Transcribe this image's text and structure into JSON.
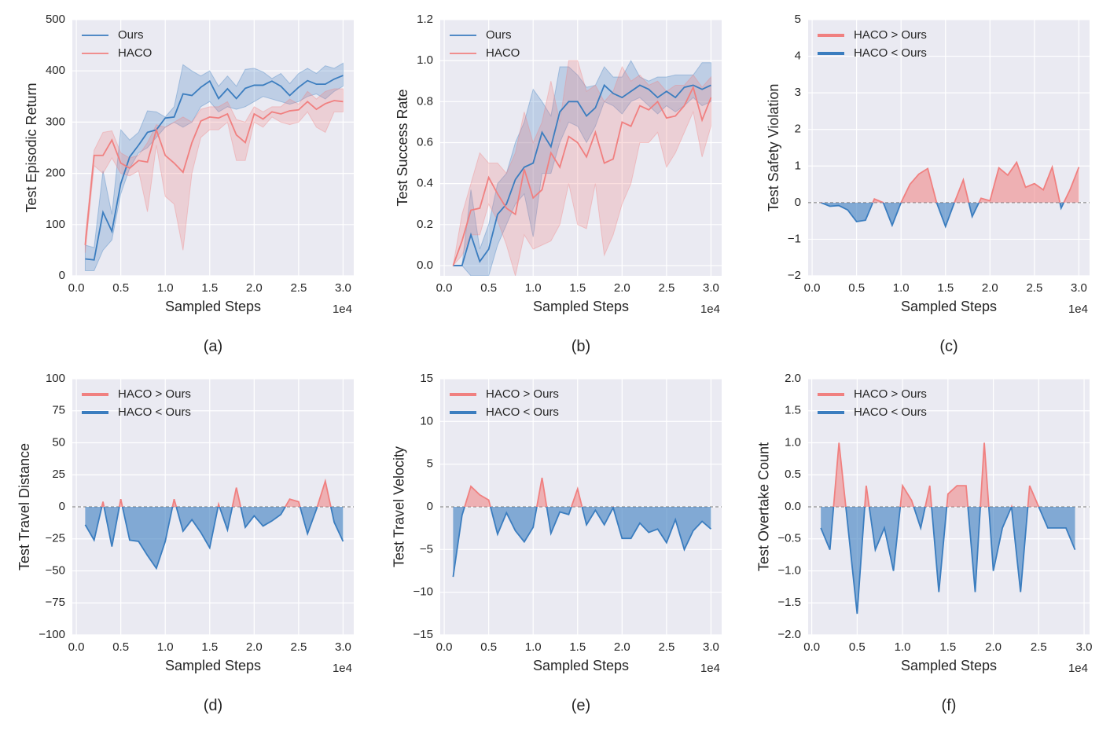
{
  "chart_data": [
    {
      "type": "line",
      "caption": "(a)",
      "xlabel": "Sampled Steps",
      "ylabel": "Test Episodic Return",
      "x_offset": "1e4",
      "legend_position": "upper left",
      "grid": true,
      "x": [
        0.1,
        0.2,
        0.3,
        0.4,
        0.5,
        0.6,
        0.7,
        0.8,
        0.9,
        1.0,
        1.1,
        1.2,
        1.3,
        1.4,
        1.5,
        1.6,
        1.7,
        1.8,
        1.9,
        2.0,
        2.1,
        2.2,
        2.3,
        2.4,
        2.5,
        2.6,
        2.7,
        2.8,
        2.9,
        3.0
      ],
      "xlim": [
        -0.045,
        3.12
      ],
      "xticks": [
        {
          "value": 0,
          "label": "0.0"
        },
        0.5,
        {
          "value": 1,
          "label": "1.0"
        },
        1.5,
        {
          "value": 2,
          "label": "2.0"
        },
        2.5,
        {
          "value": 3,
          "label": "3.0"
        }
      ],
      "ylim": [
        0,
        500
      ],
      "yticks": [
        0,
        100,
        200,
        300,
        400,
        500
      ],
      "series": [
        {
          "name": "Ours",
          "color": "#3b7dbf",
          "values": [
            33,
            31,
            124,
            87,
            180,
            232,
            255,
            280,
            285,
            308,
            310,
            355,
            352,
            368,
            380,
            346,
            365,
            346,
            366,
            372,
            372,
            380,
            370,
            352,
            368,
            381,
            374,
            374,
            384,
            391
          ],
          "lower": [
            10,
            10,
            50,
            70,
            160,
            210,
            240,
            250,
            270,
            290,
            300,
            290,
            300,
            330,
            340,
            320,
            330,
            325,
            330,
            340,
            350,
            345,
            340,
            335,
            340,
            350,
            355,
            345,
            360,
            370
          ],
          "upper": [
            60,
            55,
            205,
            120,
            285,
            265,
            280,
            322,
            320,
            310,
            330,
            412,
            400,
            390,
            400,
            370,
            390,
            370,
            403,
            405,
            398,
            385,
            395,
            375,
            395,
            405,
            395,
            410,
            405,
            415
          ]
        },
        {
          "name": "HACO",
          "color": "#f08080",
          "values": [
            60,
            235,
            235,
            265,
            220,
            210,
            225,
            222,
            285,
            235,
            220,
            202,
            260,
            302,
            310,
            308,
            316,
            275,
            260,
            316,
            306,
            320,
            316,
            322,
            324,
            340,
            325,
            336,
            342,
            340
          ],
          "lower": [
            45,
            215,
            200,
            230,
            200,
            195,
            205,
            125,
            255,
            155,
            140,
            50,
            200,
            270,
            285,
            285,
            300,
            225,
            225,
            300,
            290,
            310,
            300,
            295,
            300,
            320,
            290,
            280,
            320,
            320
          ],
          "upper": [
            75,
            245,
            280,
            283,
            240,
            230,
            235,
            260,
            295,
            290,
            300,
            310,
            300,
            325,
            330,
            330,
            340,
            305,
            300,
            330,
            320,
            330,
            330,
            345,
            335,
            360,
            345,
            360,
            365,
            365
          ]
        }
      ]
    },
    {
      "type": "line",
      "caption": "(b)",
      "xlabel": "Sampled Steps",
      "ylabel": "Test Success Rate",
      "x_offset": "1e4",
      "legend_position": "upper left",
      "grid": true,
      "x": [
        0.1,
        0.2,
        0.3,
        0.4,
        0.5,
        0.6,
        0.7,
        0.8,
        0.9,
        1.0,
        1.1,
        1.2,
        1.3,
        1.4,
        1.5,
        1.6,
        1.7,
        1.8,
        1.9,
        2.0,
        2.1,
        2.2,
        2.3,
        2.4,
        2.5,
        2.6,
        2.7,
        2.8,
        2.9,
        3.0
      ],
      "xlim": [
        -0.045,
        3.12
      ],
      "xticks": [
        {
          "value": 0,
          "label": "0.0"
        },
        0.5,
        {
          "value": 1,
          "label": "1.0"
        },
        1.5,
        {
          "value": 2,
          "label": "2.0"
        },
        2.5,
        {
          "value": 3,
          "label": "3.0"
        }
      ],
      "ylim": [
        -0.05,
        1.2
      ],
      "yticks": [
        {
          "value": 0,
          "label": "0.0"
        },
        0.2,
        0.4,
        0.6,
        0.8,
        {
          "value": 1,
          "label": "1.0"
        },
        1.2
      ],
      "series": [
        {
          "name": "Ours",
          "color": "#3b7dbf",
          "values": [
            0,
            0,
            0.15,
            0.02,
            0.08,
            0.25,
            0.3,
            0.42,
            0.48,
            0.5,
            0.65,
            0.58,
            0.75,
            0.8,
            0.8,
            0.73,
            0.77,
            0.88,
            0.84,
            0.82,
            0.85,
            0.88,
            0.86,
            0.82,
            0.85,
            0.82,
            0.87,
            0.88,
            0.86,
            0.88
          ],
          "lower": [
            0,
            0,
            -0.05,
            -0.05,
            -0.05,
            0.1,
            0.2,
            0.3,
            0.35,
            0.14,
            0.45,
            0.45,
            0.6,
            0.7,
            0.68,
            0.6,
            0.68,
            0.8,
            0.78,
            0.74,
            0.8,
            0.82,
            0.78,
            0.74,
            0.78,
            0.75,
            0.78,
            0.82,
            0.78,
            0.8
          ],
          "upper": [
            0,
            0,
            0.37,
            0.08,
            0.2,
            0.4,
            0.45,
            0.6,
            0.7,
            0.86,
            0.8,
            0.73,
            0.97,
            0.97,
            0.93,
            0.87,
            0.88,
            0.97,
            0.92,
            0.92,
            1.0,
            0.92,
            0.9,
            0.92,
            0.92,
            0.93,
            0.93,
            0.93,
            0.99,
            0.99
          ]
        },
        {
          "name": "HACO",
          "color": "#f08080",
          "values": [
            0,
            0.12,
            0.27,
            0.28,
            0.43,
            0.35,
            0.28,
            0.25,
            0.47,
            0.33,
            0.37,
            0.55,
            0.48,
            0.63,
            0.6,
            0.53,
            0.65,
            0.5,
            0.52,
            0.7,
            0.68,
            0.78,
            0.76,
            0.8,
            0.72,
            0.73,
            0.78,
            0.87,
            0.71,
            0.82
          ],
          "lower": [
            0,
            0.05,
            0.15,
            0.15,
            0.3,
            0.22,
            0.1,
            -0.05,
            0.15,
            0.08,
            0.1,
            0.12,
            0.2,
            0.4,
            0.2,
            0.18,
            0.4,
            0.05,
            0.15,
            0.3,
            0.4,
            0.6,
            0.6,
            0.65,
            0.48,
            0.55,
            0.65,
            0.75,
            0.53,
            0.68
          ],
          "upper": [
            0,
            0.25,
            0.4,
            0.55,
            0.5,
            0.5,
            0.45,
            0.55,
            0.75,
            0.6,
            0.7,
            0.9,
            0.7,
            1.0,
            1.0,
            0.85,
            0.88,
            0.8,
            0.85,
            0.97,
            0.9,
            0.93,
            0.88,
            0.9,
            0.85,
            0.88,
            0.88,
            0.93,
            0.87,
            0.92
          ]
        }
      ]
    },
    {
      "type": "diff",
      "caption": "(c)",
      "xlabel": "Sampled Steps",
      "ylabel": "Test Safety Violation",
      "x_offset": "1e4",
      "legend_position": "upper left",
      "grid": true,
      "legend": [
        {
          "name": "HACO > Ours",
          "color": "#f08080"
        },
        {
          "name": "HACO < Ours",
          "color": "#3b7dbf"
        }
      ],
      "x": [
        0.1,
        0.2,
        0.3,
        0.4,
        0.5,
        0.6,
        0.7,
        0.8,
        0.9,
        1.0,
        1.1,
        1.2,
        1.3,
        1.4,
        1.5,
        1.6,
        1.7,
        1.8,
        1.9,
        2.0,
        2.1,
        2.2,
        2.3,
        2.4,
        2.5,
        2.6,
        2.7,
        2.8,
        2.9,
        3.0
      ],
      "values": [
        0,
        -0.1,
        -0.08,
        -0.2,
        -0.52,
        -0.48,
        0.1,
        0,
        -0.62,
        0,
        0.5,
        0.78,
        0.93,
        0,
        -0.65,
        0,
        0.62,
        -0.38,
        0.12,
        0.05,
        0.95,
        0.75,
        1.1,
        0.42,
        0.52,
        0.35,
        0.97,
        -0.15,
        0.35,
        0.97
      ],
      "xlim": [
        -0.045,
        3.12
      ],
      "xticks": [
        {
          "value": 0,
          "label": "0.0"
        },
        0.5,
        {
          "value": 1,
          "label": "1.0"
        },
        1.5,
        {
          "value": 2,
          "label": "2.0"
        },
        2.5,
        {
          "value": 3,
          "label": "3.0"
        }
      ],
      "ylim": [
        -2,
        5
      ],
      "yticks": [
        {
          "value": -2,
          "label": "−2"
        },
        {
          "value": -1,
          "label": "−1"
        },
        0,
        1,
        2,
        3,
        4,
        5
      ]
    },
    {
      "type": "diff",
      "caption": "(d)",
      "xlabel": "Sampled Steps",
      "ylabel": "Test Travel Distance",
      "x_offset": "1e4",
      "legend_position": "upper left",
      "grid": true,
      "legend": [
        {
          "name": "HACO > Ours",
          "color": "#f08080"
        },
        {
          "name": "HACO < Ours",
          "color": "#3b7dbf"
        }
      ],
      "x": [
        0.1,
        0.2,
        0.3,
        0.4,
        0.5,
        0.6,
        0.7,
        0.8,
        0.9,
        1.0,
        1.1,
        1.2,
        1.3,
        1.4,
        1.5,
        1.6,
        1.7,
        1.8,
        1.9,
        2.0,
        2.1,
        2.2,
        2.3,
        2.4,
        2.5,
        2.6,
        2.7,
        2.8,
        2.9,
        3.0
      ],
      "values": [
        -14,
        -26,
        4,
        -31,
        6,
        -26,
        -27,
        -38,
        -48,
        -27,
        6,
        -19,
        -10,
        -20,
        -32,
        2,
        -18,
        15,
        -16,
        -7,
        -15,
        -11,
        -6,
        6,
        4,
        -21,
        -2,
        20,
        -12,
        -27
      ],
      "xlim": [
        -0.045,
        3.12
      ],
      "xticks": [
        {
          "value": 0,
          "label": "0.0"
        },
        0.5,
        {
          "value": 1,
          "label": "1.0"
        },
        1.5,
        {
          "value": 2,
          "label": "2.0"
        },
        2.5,
        {
          "value": 3,
          "label": "3.0"
        }
      ],
      "ylim": [
        -100,
        100
      ],
      "yticks": [
        {
          "value": -100,
          "label": "−100"
        },
        {
          "value": -75,
          "label": "−75"
        },
        {
          "value": -50,
          "label": "−50"
        },
        {
          "value": -25,
          "label": "−25"
        },
        0,
        25,
        50,
        75,
        100
      ]
    },
    {
      "type": "diff",
      "caption": "(e)",
      "xlabel": "Sampled Steps",
      "ylabel": "Test Travel Velocity",
      "x_offset": "1e4",
      "legend_position": "upper left",
      "grid": true,
      "legend": [
        {
          "name": "HACO > Ours",
          "color": "#f08080"
        },
        {
          "name": "HACO < Ours",
          "color": "#3b7dbf"
        }
      ],
      "x": [
        0.1,
        0.2,
        0.3,
        0.4,
        0.5,
        0.6,
        0.7,
        0.8,
        0.9,
        1.0,
        1.1,
        1.2,
        1.3,
        1.4,
        1.5,
        1.6,
        1.7,
        1.8,
        1.9,
        2.0,
        2.1,
        2.2,
        2.3,
        2.4,
        2.5,
        2.6,
        2.7,
        2.8,
        2.9,
        3.0
      ],
      "values": [
        -8.2,
        -1,
        2.4,
        1.4,
        0.8,
        -3.2,
        -0.7,
        -2.8,
        -4.1,
        -2.4,
        3.4,
        -3.1,
        -0.6,
        -0.9,
        2.1,
        -2.1,
        -0.4,
        -2.1,
        -0.1,
        -3.7,
        -3.7,
        -1.9,
        -3,
        -2.6,
        -4.2,
        -1.5,
        -5,
        -2.8,
        -1.7,
        -2.6
      ],
      "xlim": [
        -0.045,
        3.12
      ],
      "xticks": [
        {
          "value": 0,
          "label": "0.0"
        },
        0.5,
        {
          "value": 1,
          "label": "1.0"
        },
        1.5,
        {
          "value": 2,
          "label": "2.0"
        },
        2.5,
        {
          "value": 3,
          "label": "3.0"
        }
      ],
      "ylim": [
        -15,
        15
      ],
      "yticks": [
        {
          "value": -15,
          "label": "−15"
        },
        {
          "value": -10,
          "label": "−10"
        },
        {
          "value": -5,
          "label": "−5"
        },
        0,
        5,
        10,
        15
      ]
    },
    {
      "type": "diff",
      "caption": "(f)",
      "xlabel": "Sampled Steps",
      "ylabel": "Test Overtake Count",
      "x_offset": "1e4",
      "legend_position": "upper left",
      "grid": true,
      "legend": [
        {
          "name": "HACO > Ours",
          "color": "#f08080"
        },
        {
          "name": "HACO < Ours",
          "color": "#3b7dbf"
        }
      ],
      "x": [
        0.1,
        0.2,
        0.3,
        0.4,
        0.5,
        0.6,
        0.7,
        0.8,
        0.9,
        1.0,
        1.1,
        1.2,
        1.3,
        1.4,
        1.5,
        1.6,
        1.7,
        1.8,
        1.9,
        2.0,
        2.1,
        2.2,
        2.3,
        2.4,
        2.5,
        2.6,
        2.7,
        2.8,
        2.9
      ],
      "values": [
        -0.33,
        -0.67,
        1.0,
        -0.33,
        -1.67,
        0.33,
        -0.67,
        -0.33,
        -1.0,
        0.33,
        0.1,
        -0.33,
        0.33,
        -1.33,
        0.2,
        0.33,
        0.33,
        -1.33,
        1.0,
        -1.0,
        -0.33,
        0,
        -1.33,
        0.33,
        0,
        -0.33,
        -0.33,
        -0.33,
        -0.67
      ],
      "xlim": [
        -0.04,
        3.06
      ],
      "xticks": [
        {
          "value": 0,
          "label": "0.0"
        },
        0.5,
        {
          "value": 1,
          "label": "1.0"
        },
        1.5,
        {
          "value": 2,
          "label": "2.0"
        },
        2.5,
        {
          "value": 3,
          "label": "3.0"
        }
      ],
      "ylim": [
        -2,
        2
      ],
      "yticks": [
        {
          "value": -2,
          "label": "−2.0"
        },
        {
          "value": -1.5,
          "label": "−1.5"
        },
        {
          "value": -1,
          "label": "−1.0"
        },
        {
          "value": -0.5,
          "label": "−0.5"
        },
        {
          "value": 0,
          "label": "0.0"
        },
        0.5,
        {
          "value": 1,
          "label": "1.0"
        },
        1.5,
        {
          "value": 2,
          "label": "2.0"
        }
      ]
    }
  ]
}
